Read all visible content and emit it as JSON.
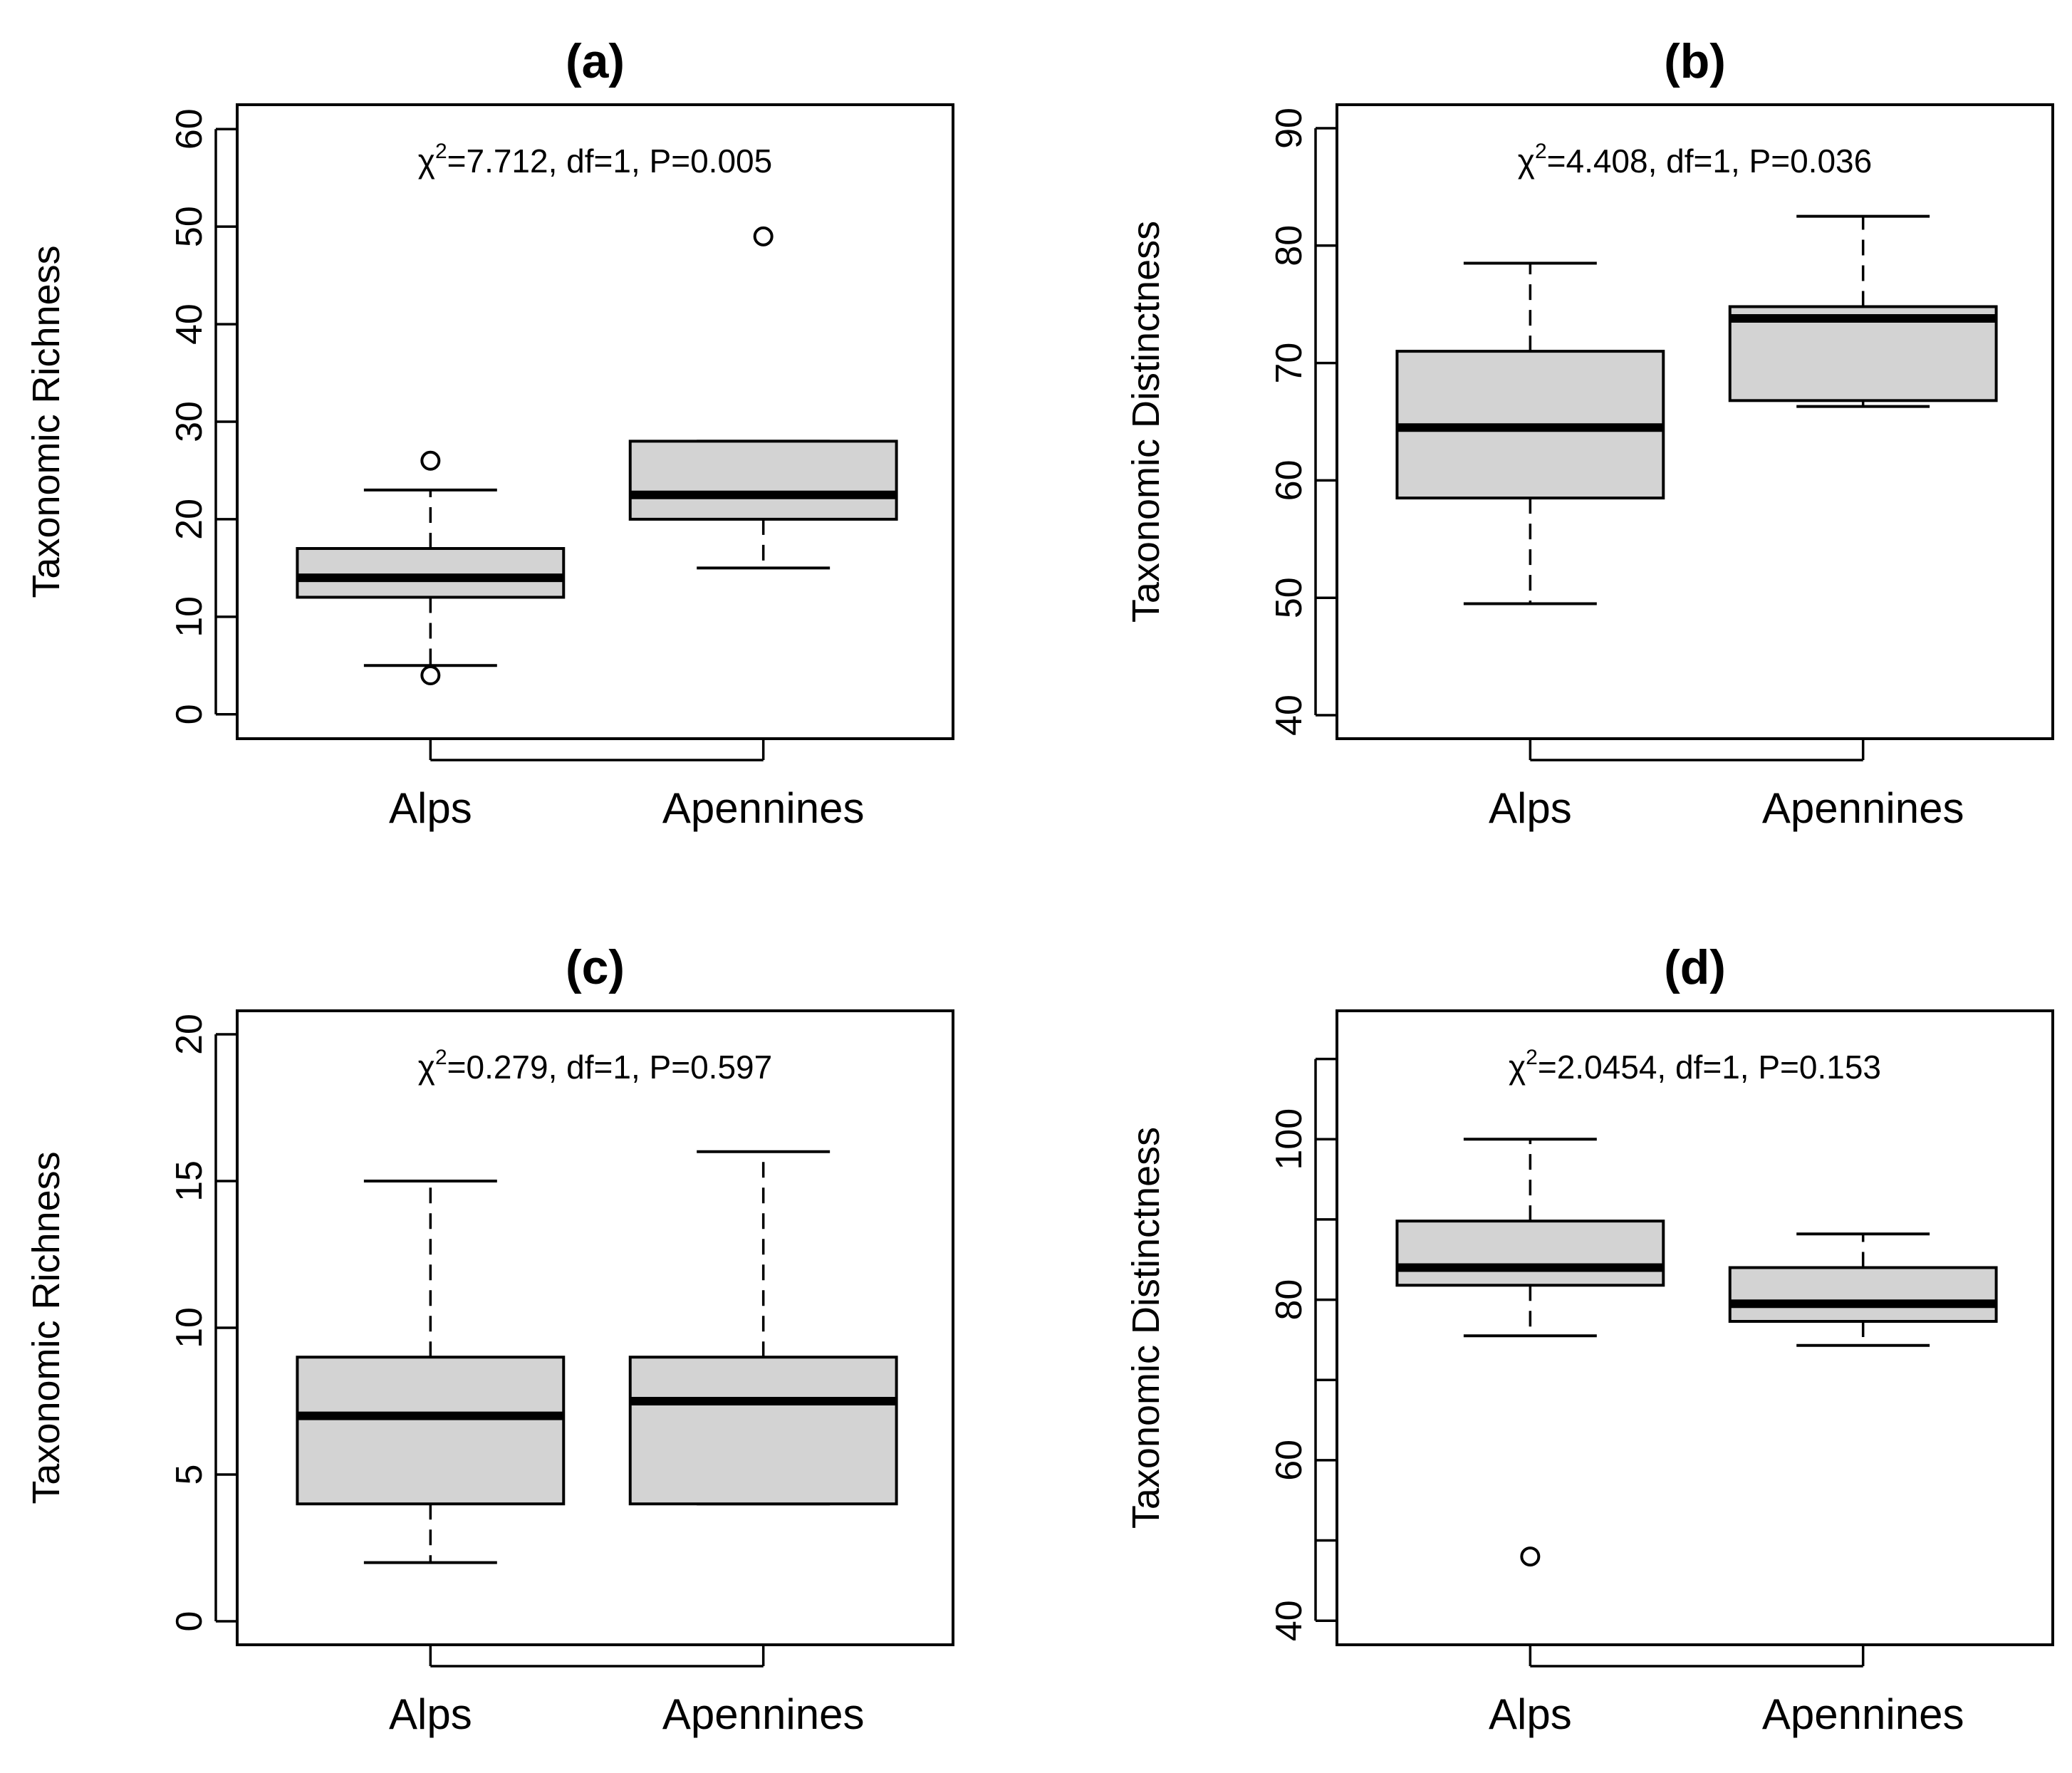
{
  "figure": {
    "background": "#ffffff",
    "box_fill": "#d3d3d3",
    "ink": "#000000"
  },
  "chart_data": [
    {
      "type": "boxplot",
      "title": "(a)",
      "ylabel": "Taxonomic Richness",
      "xlabel": "",
      "annotation": "χ²=7.712, df=1, P=0.005",
      "annotation_parts": {
        "symbol": "χ",
        "sup": "2",
        "rest": "=7.712, df=1, P=0.005"
      },
      "categories": [
        "Alps",
        "Apennines"
      ],
      "ylim": [
        -2.5,
        62.5
      ],
      "yticks": [
        0,
        10,
        20,
        30,
        40,
        50,
        60
      ],
      "ytick_labels": [
        "0",
        "10",
        "20",
        "30",
        "40",
        "50",
        "60"
      ],
      "boxes": [
        {
          "name": "Alps",
          "whisker_low": 5,
          "q1": 12,
          "median": 14,
          "q3": 17,
          "whisker_high": 23,
          "outliers": [
            26,
            4
          ]
        },
        {
          "name": "Apennines",
          "whisker_low": 15,
          "q1": 20,
          "median": 22.5,
          "q3": 28,
          "whisker_high": 28,
          "outliers": [
            49
          ]
        }
      ]
    },
    {
      "type": "boxplot",
      "title": "(b)",
      "ylabel": "Taxonomic Distinctness",
      "xlabel": "",
      "annotation": "χ²=4.408, df=1, P=0.036",
      "annotation_parts": {
        "symbol": "χ",
        "sup": "2",
        "rest": "=4.408, df=1, P=0.036"
      },
      "categories": [
        "Alps",
        "Apennines"
      ],
      "ylim": [
        38,
        92
      ],
      "yticks": [
        40,
        50,
        60,
        70,
        80,
        90
      ],
      "ytick_labels": [
        "40",
        "50",
        "60",
        "70",
        "80",
        "90"
      ],
      "boxes": [
        {
          "name": "Alps",
          "whisker_low": 49.5,
          "q1": 58.5,
          "median": 64.5,
          "q3": 71,
          "whisker_high": 78.5,
          "outliers": []
        },
        {
          "name": "Apennines",
          "whisker_low": 66.3,
          "q1": 66.8,
          "median": 73.8,
          "q3": 74.8,
          "whisker_high": 82.5,
          "outliers": []
        }
      ]
    },
    {
      "type": "boxplot",
      "title": "(c)",
      "ylabel": "Taxonomic Richness",
      "xlabel": "",
      "annotation": "χ²=0.279, df=1, P=0.597",
      "annotation_parts": {
        "symbol": "χ",
        "sup": "2",
        "rest": "=0.279, df=1, P=0.597"
      },
      "categories": [
        "Alps",
        "Apennines"
      ],
      "ylim": [
        -0.8,
        20.8
      ],
      "yticks": [
        0,
        5,
        10,
        15,
        20
      ],
      "ytick_labels": [
        "0",
        "5",
        "10",
        "15",
        "20"
      ],
      "boxes": [
        {
          "name": "Alps",
          "whisker_low": 2,
          "q1": 4,
          "median": 7,
          "q3": 9,
          "whisker_high": 15,
          "outliers": []
        },
        {
          "name": "Apennines",
          "whisker_low": 4,
          "q1": 4,
          "median": 7.5,
          "q3": 9,
          "whisker_high": 16,
          "outliers": []
        }
      ]
    },
    {
      "type": "boxplot",
      "title": "(d)",
      "ylabel": "Taxonomic Distinctness",
      "xlabel": "",
      "annotation": "χ²=2.0454, df=1, P=0.153",
      "annotation_parts": {
        "symbol": "χ",
        "sup": "2",
        "rest": "=2.0454, df=1, P=0.153"
      },
      "categories": [
        "Alps",
        "Apennines"
      ],
      "ylim": [
        37,
        116
      ],
      "yticks": [
        40,
        50,
        60,
        70,
        80,
        90,
        100,
        110
      ],
      "ytick_labels": [
        "40",
        "",
        "60",
        "",
        "80",
        "",
        "100",
        ""
      ],
      "boxes": [
        {
          "name": "Alps",
          "whisker_low": 75.5,
          "q1": 81.8,
          "median": 84,
          "q3": 89.8,
          "whisker_high": 100,
          "outliers": [
            48
          ]
        },
        {
          "name": "Apennines",
          "whisker_low": 74.3,
          "q1": 77.3,
          "median": 79.5,
          "q3": 84,
          "whisker_high": 88.2,
          "outliers": []
        }
      ]
    }
  ]
}
